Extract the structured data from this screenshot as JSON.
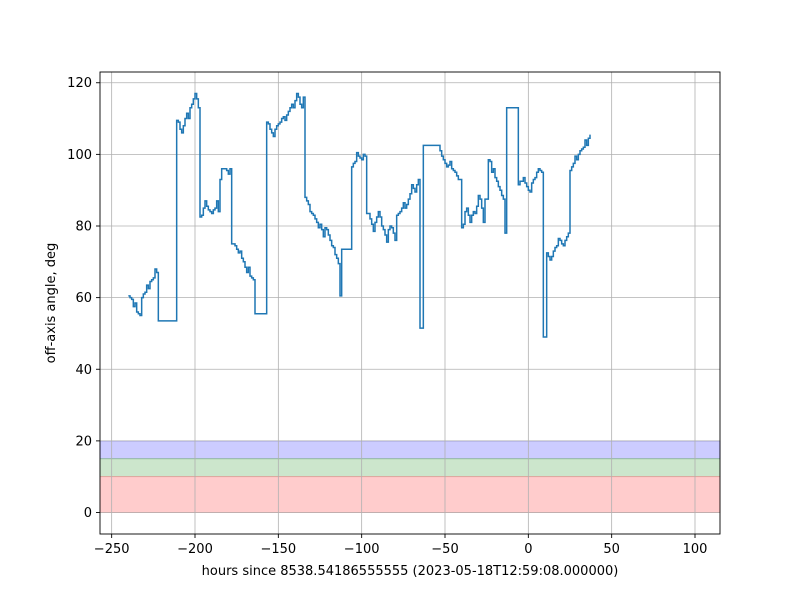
{
  "chart_data": {
    "type": "line",
    "title": "",
    "xlabel": "hours since 8538.54186555555 (2023-05-18T12:59:08.000000)",
    "ylabel": "off-axis angle, deg",
    "xlim": [
      -257,
      115
    ],
    "ylim": [
      -6,
      123
    ],
    "xticks": [
      -250,
      -200,
      -150,
      -100,
      -50,
      0,
      50,
      100
    ],
    "xtick_labels": [
      "−250",
      "−200",
      "−150",
      "−100",
      "−50",
      "0",
      "50",
      "100"
    ],
    "yticks": [
      0,
      20,
      40,
      60,
      80,
      100,
      120
    ],
    "ytick_labels": [
      "0",
      "20",
      "40",
      "60",
      "80",
      "100",
      "120"
    ],
    "grid": true,
    "bands": [
      {
        "y0": 15,
        "y1": 20,
        "color": "#ccccff",
        "edge": "#7777ee"
      },
      {
        "y0": 10,
        "y1": 15,
        "color": "#cce6cc",
        "edge": "#88bb88"
      },
      {
        "y0": 0,
        "y1": 10,
        "color": "#ffcccc",
        "edge": "#ee9999"
      }
    ],
    "series": [
      {
        "color": "#1f77b4",
        "step": "post",
        "points": [
          [
            -240,
            60.5
          ],
          [
            -239,
            60
          ],
          [
            -238,
            59.5
          ],
          [
            -237,
            57.5
          ],
          [
            -236,
            58.5
          ],
          [
            -235,
            56
          ],
          [
            -234,
            55.5
          ],
          [
            -233,
            55
          ],
          [
            -232,
            60
          ],
          [
            -231,
            61
          ],
          [
            -230,
            61.5
          ],
          [
            -229,
            63.5
          ],
          [
            -228,
            62.5
          ],
          [
            -227,
            64.5
          ],
          [
            -226,
            65
          ],
          [
            -225,
            65.5
          ],
          [
            -224,
            68
          ],
          [
            -223,
            67
          ],
          [
            -222,
            53.5
          ],
          [
            -211,
            109.5
          ],
          [
            -210,
            109
          ],
          [
            -209,
            107
          ],
          [
            -208,
            106
          ],
          [
            -207,
            108
          ],
          [
            -206,
            110
          ],
          [
            -205,
            111.5
          ],
          [
            -204,
            110
          ],
          [
            -203,
            113
          ],
          [
            -202,
            114
          ],
          [
            -201,
            115.5
          ],
          [
            -200,
            117
          ],
          [
            -199,
            115.5
          ],
          [
            -198,
            113
          ],
          [
            -197,
            82.5
          ],
          [
            -196,
            83
          ],
          [
            -195,
            85
          ],
          [
            -194,
            87
          ],
          [
            -193,
            85.5
          ],
          [
            -192,
            84.5
          ],
          [
            -191,
            84
          ],
          [
            -190,
            83.5
          ],
          [
            -189,
            84.5
          ],
          [
            -188,
            85
          ],
          [
            -187,
            87
          ],
          [
            -186,
            84
          ],
          [
            -185,
            93
          ],
          [
            -184,
            96
          ],
          [
            -181,
            95.5
          ],
          [
            -180,
            94.5
          ],
          [
            -179,
            96
          ],
          [
            -178,
            75
          ],
          [
            -176,
            74.5
          ],
          [
            -175,
            73.5
          ],
          [
            -174,
            72.5
          ],
          [
            -173,
            73
          ],
          [
            -172,
            71
          ],
          [
            -171,
            70
          ],
          [
            -170,
            68.5
          ],
          [
            -169,
            67
          ],
          [
            -168,
            68.5
          ],
          [
            -167,
            66
          ],
          [
            -166,
            65.5
          ],
          [
            -165,
            65
          ],
          [
            -164,
            55.5
          ],
          [
            -157,
            109
          ],
          [
            -156,
            108.5
          ],
          [
            -155,
            107
          ],
          [
            -154,
            106
          ],
          [
            -153,
            105
          ],
          [
            -152,
            107
          ],
          [
            -151,
            108
          ],
          [
            -150,
            108.5
          ],
          [
            -149,
            109
          ],
          [
            -148,
            110
          ],
          [
            -147,
            110.5
          ],
          [
            -146,
            109.5
          ],
          [
            -145,
            111
          ],
          [
            -144,
            112
          ],
          [
            -143,
            113
          ],
          [
            -142,
            114
          ],
          [
            -141,
            113
          ],
          [
            -140,
            115
          ],
          [
            -139,
            117
          ],
          [
            -138,
            116
          ],
          [
            -137,
            114
          ],
          [
            -136,
            113
          ],
          [
            -135,
            116
          ],
          [
            -134,
            88
          ],
          [
            -133,
            87
          ],
          [
            -132,
            86
          ],
          [
            -131,
            84
          ],
          [
            -130,
            83.5
          ],
          [
            -129,
            83
          ],
          [
            -128,
            82
          ],
          [
            -127,
            81
          ],
          [
            -126,
            79.5
          ],
          [
            -125,
            80.5
          ],
          [
            -124,
            79
          ],
          [
            -123,
            77
          ],
          [
            -122,
            79.5
          ],
          [
            -121,
            79
          ],
          [
            -120,
            77.5
          ],
          [
            -119,
            76
          ],
          [
            -118,
            74.5
          ],
          [
            -117,
            74
          ],
          [
            -116,
            72
          ],
          [
            -115,
            71
          ],
          [
            -114,
            69.5
          ],
          [
            -113,
            60.5
          ],
          [
            -112,
            73.5
          ],
          [
            -106,
            96.5
          ],
          [
            -105,
            97.5
          ],
          [
            -104,
            98
          ],
          [
            -103,
            100.5
          ],
          [
            -102,
            99.5
          ],
          [
            -101,
            99
          ],
          [
            -100,
            98.5
          ],
          [
            -99,
            100
          ],
          [
            -98,
            99.5
          ],
          [
            -97,
            83.5
          ],
          [
            -95,
            82
          ],
          [
            -94,
            80.5
          ],
          [
            -93,
            78.5
          ],
          [
            -92,
            81
          ],
          [
            -91,
            82.5
          ],
          [
            -90,
            84
          ],
          [
            -89,
            82.5
          ],
          [
            -88,
            80
          ],
          [
            -87,
            79
          ],
          [
            -86,
            77.5
          ],
          [
            -85,
            75.5
          ],
          [
            -84,
            79
          ],
          [
            -83,
            80
          ],
          [
            -82,
            79.5
          ],
          [
            -81,
            78
          ],
          [
            -80,
            76
          ],
          [
            -79,
            83
          ],
          [
            -78,
            83.5
          ],
          [
            -77,
            84
          ],
          [
            -76,
            85
          ],
          [
            -75,
            86.5
          ],
          [
            -74,
            85
          ],
          [
            -73,
            86
          ],
          [
            -72,
            87.5
          ],
          [
            -71,
            89
          ],
          [
            -70,
            91.5
          ],
          [
            -69,
            90.5
          ],
          [
            -68,
            89.5
          ],
          [
            -67,
            91.5
          ],
          [
            -66,
            93
          ],
          [
            -65,
            51.5
          ],
          [
            -63,
            102.5
          ],
          [
            -53,
            101
          ],
          [
            -52,
            99.5
          ],
          [
            -51,
            98.5
          ],
          [
            -50,
            97.5
          ],
          [
            -49,
            96.5
          ],
          [
            -48,
            97
          ],
          [
            -47,
            98
          ],
          [
            -46,
            96
          ],
          [
            -45,
            95.5
          ],
          [
            -44,
            95
          ],
          [
            -43,
            94
          ],
          [
            -42,
            93
          ],
          [
            -40,
            79.5
          ],
          [
            -39,
            80.5
          ],
          [
            -38,
            84
          ],
          [
            -37,
            85
          ],
          [
            -36,
            83
          ],
          [
            -35,
            81
          ],
          [
            -34,
            83
          ],
          [
            -33,
            84
          ],
          [
            -32,
            83.5
          ],
          [
            -31,
            85.5
          ],
          [
            -30,
            88.5
          ],
          [
            -29,
            87.5
          ],
          [
            -28,
            85
          ],
          [
            -27,
            81
          ],
          [
            -26,
            87.5
          ],
          [
            -24,
            98.5
          ],
          [
            -23,
            98
          ],
          [
            -22,
            95
          ],
          [
            -21,
            96
          ],
          [
            -20,
            93.5
          ],
          [
            -19,
            92.5
          ],
          [
            -18,
            91
          ],
          [
            -17,
            90
          ],
          [
            -16,
            88.5
          ],
          [
            -15,
            87.5
          ],
          [
            -14,
            78
          ],
          [
            -13,
            113
          ],
          [
            -6,
            91.5
          ],
          [
            -5,
            92.5
          ],
          [
            -4,
            92.5
          ],
          [
            -3,
            93.5
          ],
          [
            -2,
            92
          ],
          [
            -1,
            91
          ],
          [
            0,
            90
          ],
          [
            1,
            89.5
          ],
          [
            2,
            92
          ],
          [
            3,
            93
          ],
          [
            4,
            93.5
          ],
          [
            5,
            95
          ],
          [
            6,
            96
          ],
          [
            7,
            95.5
          ],
          [
            8,
            95
          ],
          [
            9,
            49
          ],
          [
            11,
            72.5
          ],
          [
            12,
            71.5
          ],
          [
            13,
            70.5
          ],
          [
            14,
            71.5
          ],
          [
            15,
            73
          ],
          [
            16,
            74
          ],
          [
            17,
            74.5
          ],
          [
            18,
            76.5
          ],
          [
            19,
            76
          ],
          [
            20,
            75
          ],
          [
            21,
            74.5
          ],
          [
            22,
            76
          ],
          [
            23,
            77
          ],
          [
            24,
            78
          ],
          [
            25,
            95.5
          ],
          [
            26,
            96.5
          ],
          [
            27,
            97.5
          ],
          [
            28,
            99.5
          ],
          [
            29,
            98.5
          ],
          [
            30,
            100
          ],
          [
            31,
            101
          ],
          [
            32,
            101.5
          ],
          [
            33,
            102
          ],
          [
            34,
            104
          ],
          [
            35,
            102.5
          ],
          [
            36,
            104.5
          ],
          [
            37,
            105.5
          ]
        ]
      }
    ],
    "x_offset": -90
  }
}
